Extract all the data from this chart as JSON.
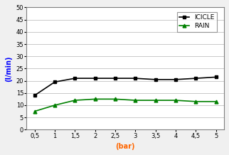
{
  "x_values": [
    0.5,
    1.0,
    1.5,
    2.0,
    2.5,
    3.0,
    3.5,
    4.0,
    4.5,
    5.0
  ],
  "icicle_values": [
    14.0,
    19.5,
    21.0,
    21.0,
    21.0,
    21.0,
    20.5,
    20.5,
    21.0,
    21.5
  ],
  "rain_values": [
    7.5,
    10.0,
    12.0,
    12.5,
    12.5,
    12.0,
    12.0,
    12.0,
    11.5,
    11.5
  ],
  "icicle_color": "#000000",
  "rain_color": "#008000",
  "icicle_label": "ICICLE",
  "rain_label": "RAIN",
  "xlabel": "(bar)",
  "ylabel": "(l/min)",
  "xlabel_color": "#ff6600",
  "ylabel_color": "#0000ff",
  "ylim": [
    0,
    50
  ],
  "yticks": [
    0,
    5,
    10,
    15,
    20,
    25,
    30,
    35,
    40,
    45,
    50
  ],
  "xtick_labels": [
    "0,5",
    "1",
    "1,5",
    "2",
    "2,5",
    "3",
    "3,5",
    "4",
    "4,5",
    "5"
  ],
  "background_color": "#f0f0f0",
  "plot_bg_color": "#ffffff",
  "grid_color": "#c0c0c0",
  "border_color": "#808080",
  "axis_fontsize": 7,
  "tick_fontsize": 6,
  "legend_fontsize": 6.5
}
